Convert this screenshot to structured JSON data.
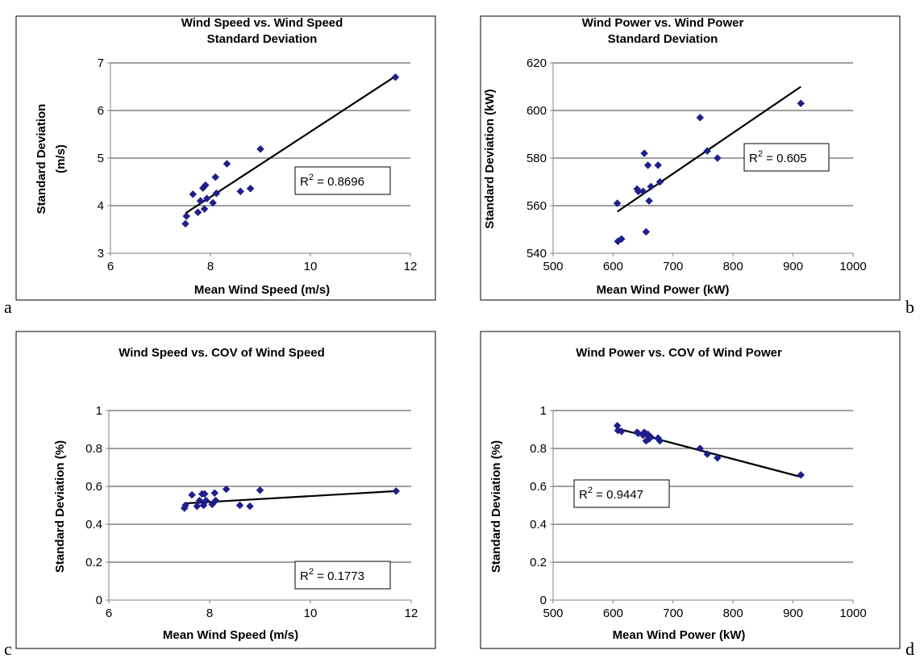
{
  "chart_data": [
    {
      "type": "scatter",
      "panel_label": "a",
      "title": [
        "Wind Speed vs. Wind Speed",
        "Standard Deviation"
      ],
      "xlabel": "Mean Wind Speed (m/s)",
      "ylabel": [
        "Standard Deviation",
        "(m/s)"
      ],
      "xlim": [
        6,
        12
      ],
      "ylim": [
        3,
        7
      ],
      "xticks": [
        6,
        8,
        10,
        12
      ],
      "yticks": [
        3,
        4,
        5,
        6,
        7
      ],
      "grid": "horizontal",
      "marker_color": "#1f1f8c",
      "series": [
        {
          "x": [
            7.5,
            7.52,
            7.65,
            7.75,
            7.8,
            7.85,
            7.88,
            7.9,
            7.93,
            8.05,
            8.1,
            8.12,
            8.33,
            8.6,
            8.8,
            9.0,
            11.7
          ],
          "y": [
            3.62,
            3.78,
            4.24,
            3.86,
            4.1,
            4.37,
            3.93,
            4.43,
            4.15,
            4.06,
            4.6,
            4.26,
            4.88,
            4.3,
            4.36,
            5.19,
            6.7
          ]
        }
      ],
      "trendline": {
        "x": [
          7.5,
          11.7
        ],
        "y": [
          3.84,
          6.72
        ]
      },
      "r2": {
        "prefix": "R",
        "sup": "2",
        "value": " = 0.8696"
      }
    },
    {
      "type": "scatter",
      "panel_label": "b",
      "title": [
        "Wind Power vs. Wind Power",
        "Standard Deviation"
      ],
      "xlabel": "Mean Wind Power (kW)",
      "ylabel": [
        "Standard Deviation (kW)"
      ],
      "xlim": [
        500,
        1000
      ],
      "ylim": [
        540,
        620
      ],
      "xticks": [
        500,
        600,
        700,
        800,
        900,
        1000
      ],
      "yticks": [
        540,
        560,
        580,
        600,
        620
      ],
      "grid": "horizontal",
      "marker_color": "#1f1f8c",
      "series": [
        {
          "x": [
            607,
            608,
            614,
            640,
            642,
            650,
            652,
            655,
            658,
            660,
            663,
            675,
            678,
            745,
            757,
            774,
            913
          ],
          "y": [
            561,
            545,
            546,
            567,
            566,
            566,
            582,
            549,
            577,
            562,
            568,
            577,
            570,
            597,
            583,
            580,
            603
          ]
        }
      ],
      "trendline": {
        "x": [
          607,
          913
        ],
        "y": [
          557.5,
          610
        ]
      },
      "r2": {
        "prefix": "R",
        "sup": "2",
        "value": " = 0.605"
      }
    },
    {
      "type": "scatter",
      "panel_label": "c",
      "title": [
        "Wind Speed vs. COV of Wind Speed"
      ],
      "xlabel": "Mean Wind Speed (m/s)",
      "ylabel": [
        "Standard Deviation (%)"
      ],
      "xlim": [
        6,
        12
      ],
      "ylim": [
        0,
        1
      ],
      "xticks": [
        6,
        8,
        10,
        12
      ],
      "yticks": [
        0,
        0.2,
        0.4,
        0.6,
        0.8,
        1
      ],
      "grid": "horizontal",
      "marker_color": "#1f1f8c",
      "series": [
        {
          "x": [
            7.5,
            7.52,
            7.65,
            7.75,
            7.8,
            7.85,
            7.88,
            7.9,
            7.93,
            8.05,
            8.1,
            8.12,
            8.33,
            8.6,
            8.8,
            9.0,
            11.7
          ],
          "y": [
            0.485,
            0.5,
            0.555,
            0.495,
            0.525,
            0.56,
            0.5,
            0.56,
            0.525,
            0.505,
            0.565,
            0.525,
            0.585,
            0.5,
            0.495,
            0.58,
            0.575
          ]
        }
      ],
      "trendline": {
        "x": [
          7.5,
          11.7
        ],
        "y": [
          0.51,
          0.575
        ]
      },
      "r2": {
        "prefix": "R",
        "sup": "2",
        "value": " = 0.1773"
      }
    },
    {
      "type": "scatter",
      "panel_label": "d",
      "title": [
        "Wind Power vs. COV of Wind Power"
      ],
      "xlabel": "Mean Wind Power (kW)",
      "ylabel": [
        "Standard Deviation (%)"
      ],
      "xlim": [
        500,
        1000
      ],
      "ylim": [
        0,
        1
      ],
      "xticks": [
        500,
        600,
        700,
        800,
        900,
        1000
      ],
      "yticks": [
        0,
        0.2,
        0.4,
        0.6,
        0.8,
        1
      ],
      "grid": "horizontal",
      "marker_color": "#1f1f8c",
      "series": [
        {
          "x": [
            607,
            608,
            614,
            640,
            642,
            650,
            652,
            655,
            658,
            660,
            663,
            675,
            678,
            745,
            757,
            774,
            913
          ],
          "y": [
            0.92,
            0.895,
            0.89,
            0.885,
            0.88,
            0.87,
            0.885,
            0.84,
            0.875,
            0.85,
            0.86,
            0.855,
            0.84,
            0.8,
            0.77,
            0.75,
            0.66
          ]
        }
      ],
      "trendline": {
        "x": [
          607,
          913
        ],
        "y": [
          0.905,
          0.65
        ]
      },
      "r2": {
        "prefix": "R",
        "sup": "2",
        "value": " = 0.9447"
      }
    }
  ]
}
